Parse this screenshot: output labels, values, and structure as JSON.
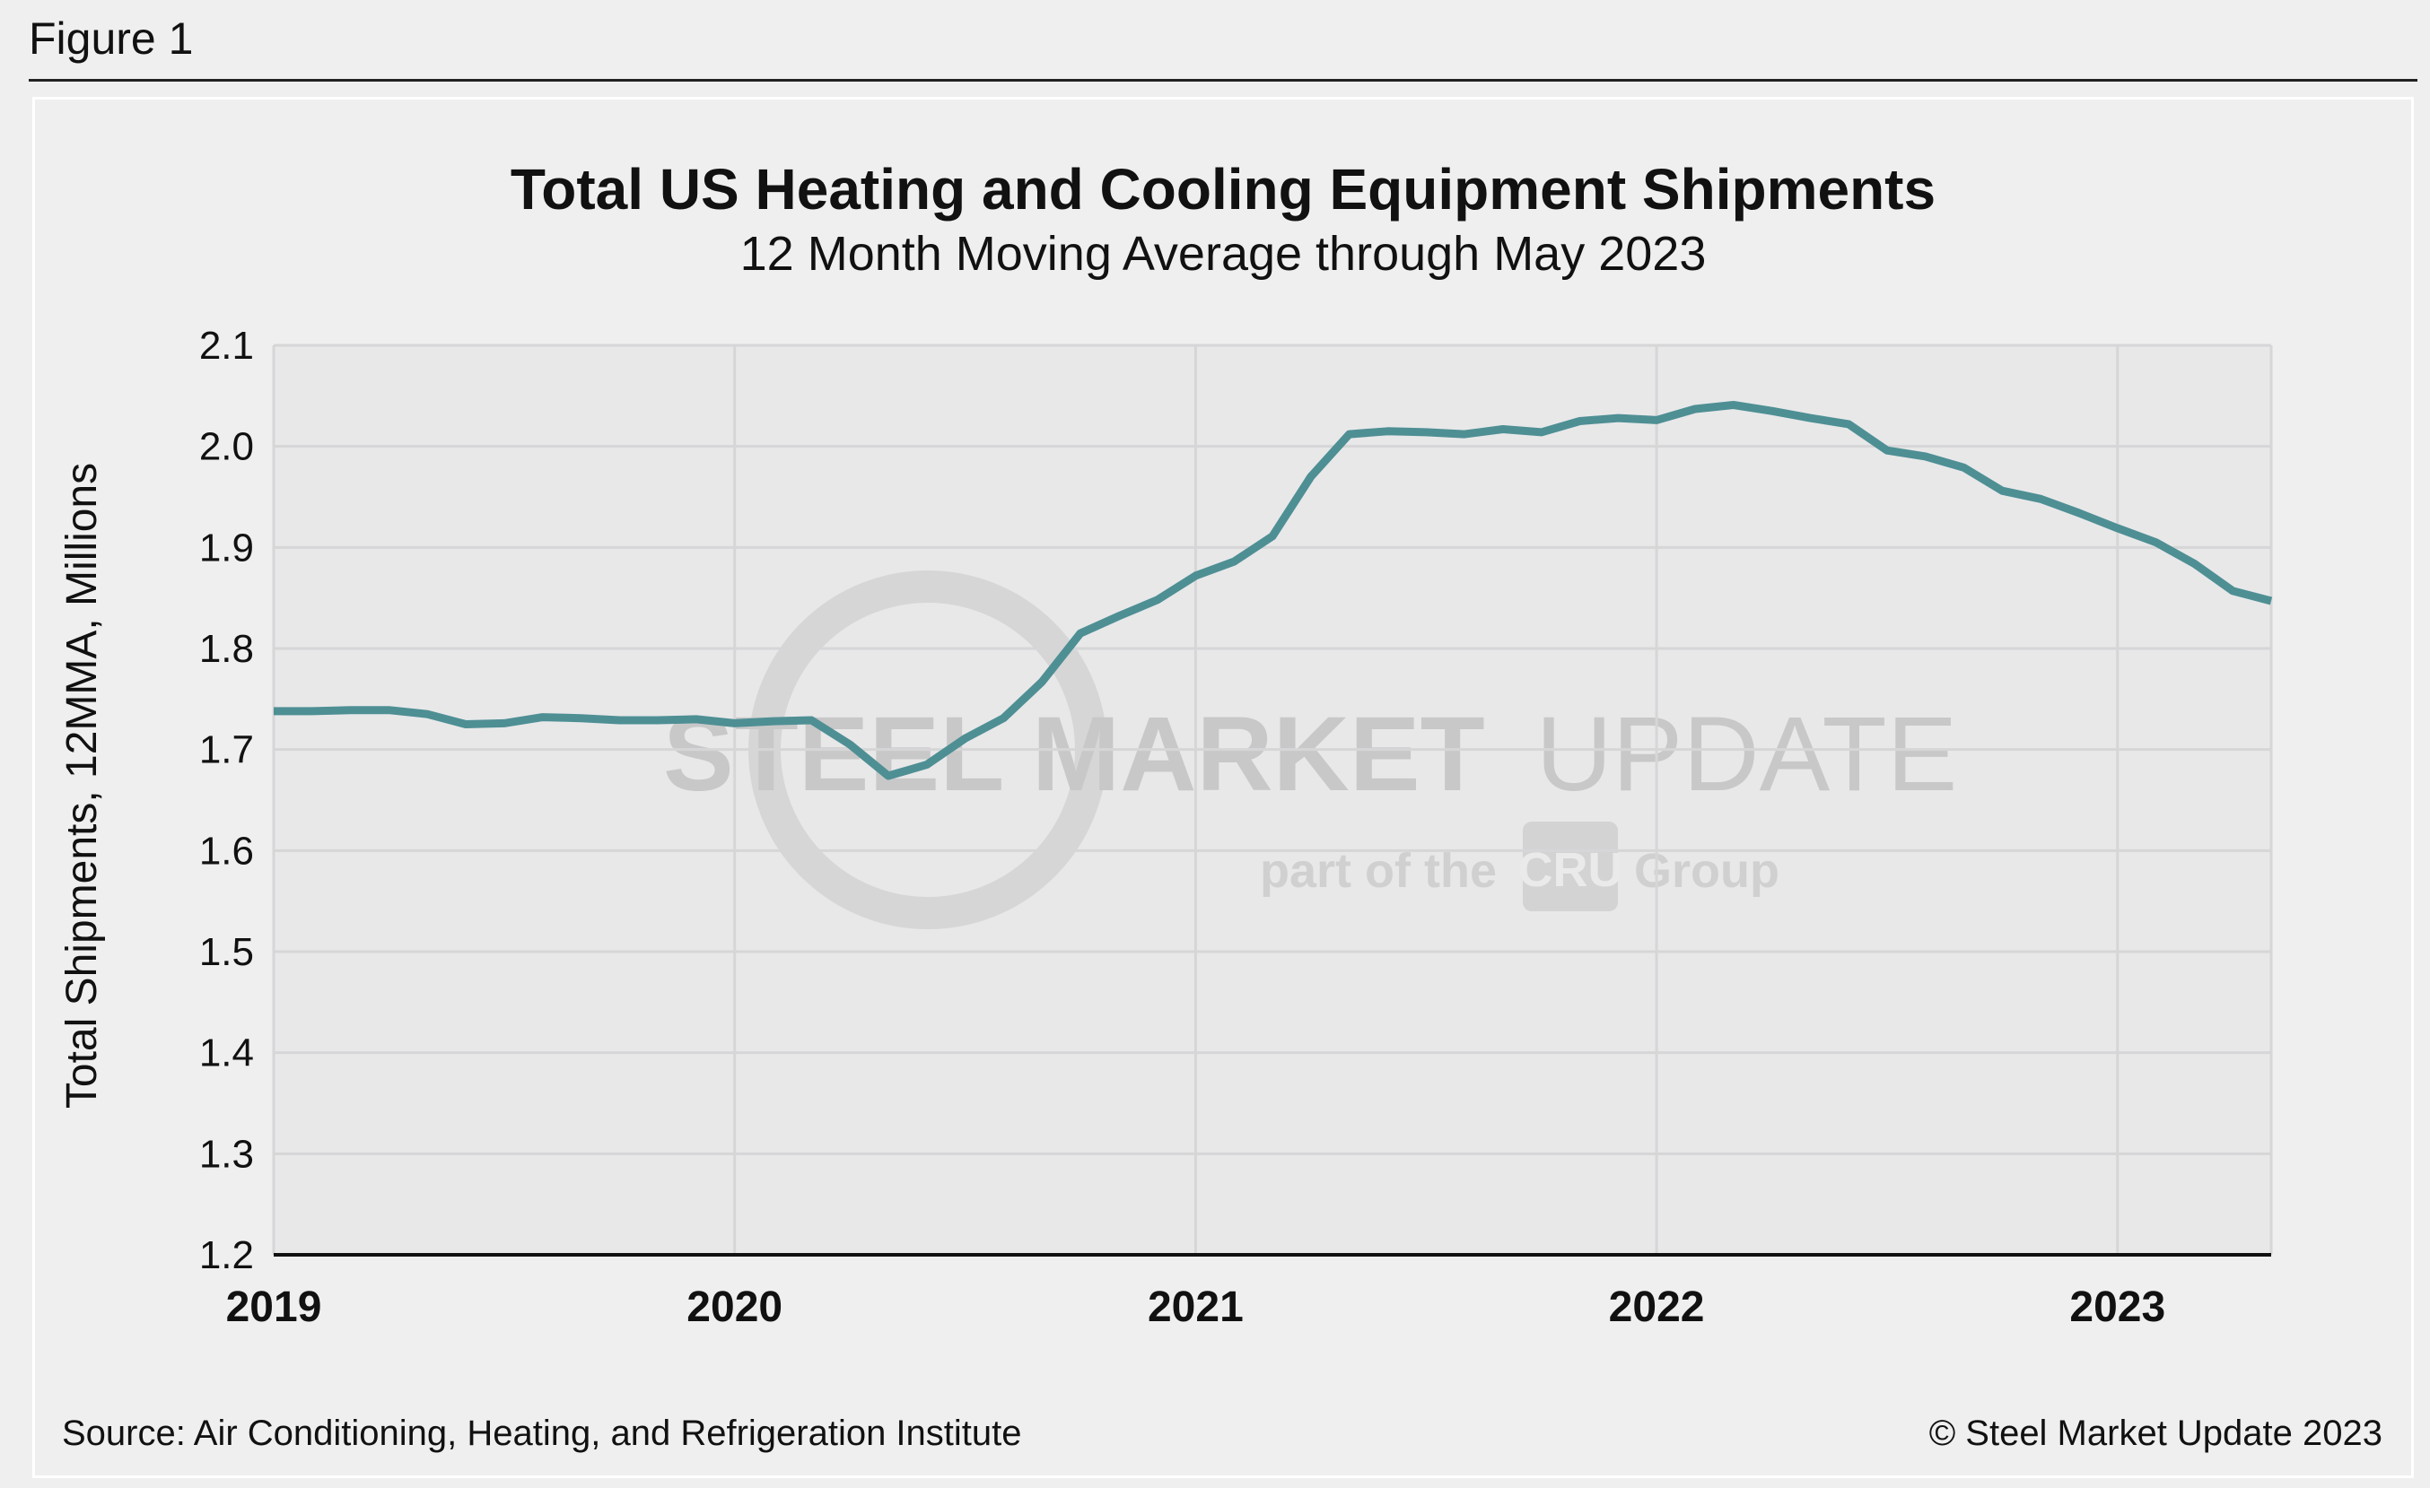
{
  "figure_label": "Figure 1",
  "source": "Source: Air Conditioning, Heating, and Refrigeration Institute",
  "copyright": "© Steel Market Update 2023",
  "watermark": {
    "line1_bold": "STEEL MARKET",
    "line1_light": "UPDATE",
    "line2_left": "part of the",
    "line2_badge": "CRU",
    "line2_right": "Group"
  },
  "colors": {
    "line": "#4e8f94",
    "plot_bg": "#e8e8e9",
    "grid": "#d6d6d8",
    "axis": "#111111"
  },
  "chart_data": {
    "type": "line",
    "title": "Total US Heating and Cooling Equipment Shipments",
    "subtitle": "12 Month Moving Average through May 2023",
    "ylabel": "Total Shipments, 12MMA, Millions",
    "xlabel": "",
    "ylim": [
      1.2,
      2.1
    ],
    "yticks": [
      1.2,
      1.3,
      1.4,
      1.5,
      1.6,
      1.7,
      1.8,
      1.9,
      2.0,
      2.1
    ],
    "ytick_labels": [
      "1.2",
      "1.3",
      "1.4",
      "1.5",
      "1.6",
      "1.7",
      "1.8",
      "1.9",
      "2.0",
      "2.1"
    ],
    "xlim": [
      "2019-01",
      "2023-05"
    ],
    "xtick_labels": [
      "2019",
      "2020",
      "2021",
      "2022",
      "2023"
    ],
    "xtick_dates": [
      "2019-01",
      "2020-01",
      "2021-01",
      "2022-01",
      "2023-01"
    ],
    "grid": true,
    "series": [
      {
        "x": [
          "2019-01",
          "2019-02",
          "2019-03",
          "2019-04",
          "2019-05",
          "2019-06",
          "2019-07",
          "2019-08",
          "2019-09",
          "2019-10",
          "2019-11",
          "2019-12",
          "2020-01",
          "2020-02",
          "2020-03",
          "2020-04",
          "2020-05",
          "2020-06",
          "2020-07",
          "2020-08",
          "2020-09",
          "2020-10",
          "2020-11",
          "2020-12",
          "2021-01",
          "2021-02",
          "2021-03",
          "2021-04",
          "2021-05",
          "2021-06",
          "2021-07",
          "2021-08",
          "2021-09",
          "2021-10",
          "2021-11",
          "2021-12",
          "2022-01",
          "2022-02",
          "2022-03",
          "2022-04",
          "2022-05",
          "2022-06",
          "2022-07",
          "2022-08",
          "2022-09",
          "2022-10",
          "2022-11",
          "2022-12",
          "2023-01",
          "2023-02",
          "2023-03",
          "2023-04",
          "2023-05"
        ],
        "values": [
          1.738,
          1.738,
          1.739,
          1.739,
          1.735,
          1.725,
          1.726,
          1.732,
          1.731,
          1.729,
          1.729,
          1.73,
          1.726,
          1.728,
          1.729,
          1.705,
          1.674,
          1.685,
          1.711,
          1.731,
          1.767,
          1.815,
          1.832,
          1.848,
          1.872,
          1.886,
          1.911,
          1.97,
          2.012,
          2.015,
          2.014,
          2.012,
          2.017,
          2.014,
          2.025,
          2.028,
          2.026,
          2.037,
          2.041,
          2.035,
          2.028,
          2.022,
          1.996,
          1.99,
          1.979,
          1.956,
          1.948,
          1.934,
          1.919,
          1.905,
          1.884,
          1.857,
          1.847
        ]
      }
    ]
  }
}
